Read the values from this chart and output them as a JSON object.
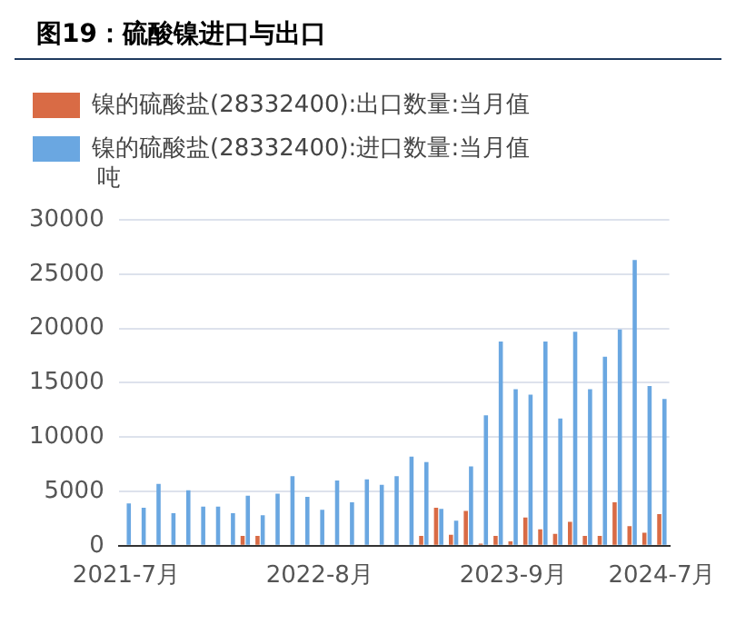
{
  "chart_data": {
    "type": "bar",
    "title": "图19：硫酸镍进口与出口",
    "ylabel": "吨",
    "categories": [
      "2021-7月",
      null,
      null,
      null,
      null,
      null,
      null,
      null,
      null,
      null,
      null,
      null,
      null,
      "2022-8月",
      null,
      null,
      null,
      null,
      null,
      null,
      null,
      null,
      null,
      null,
      null,
      null,
      "2023-9月",
      null,
      null,
      null,
      null,
      null,
      null,
      null,
      null,
      null,
      "2024-7月"
    ],
    "series": [
      {
        "name": "镍的硫酸盐(28332400):出口数量:当月值",
        "color": "#d96b45",
        "values": [
          null,
          null,
          null,
          null,
          null,
          null,
          null,
          null,
          900,
          900,
          null,
          null,
          null,
          null,
          null,
          null,
          null,
          null,
          null,
          null,
          900,
          3500,
          1000,
          3200,
          200,
          900,
          400,
          2600,
          1500,
          1100,
          2200,
          900,
          900,
          4000,
          1800,
          1200,
          2900
        ]
      },
      {
        "name": "镍的硫酸盐(28332400):进口数量:当月值",
        "color": "#6aa7e1",
        "values": [
          3900,
          3500,
          5700,
          3000,
          5100,
          3600,
          3600,
          3000,
          4600,
          2800,
          4800,
          6400,
          4500,
          3300,
          6000,
          4000,
          6100,
          5600,
          6400,
          8200,
          7700,
          3400,
          2300,
          7300,
          12000,
          18800,
          14400,
          13900,
          18800,
          11700,
          19700,
          14400,
          17400,
          19900,
          26300,
          14700,
          13500
        ]
      }
    ],
    "ylim": [
      0,
      30000
    ],
    "yticks": [
      0,
      {
        "value": 5000,
        "label": "5000"
      },
      {
        "value": 10000,
        "label": "10000"
      },
      {
        "value": 15000,
        "label": "15000"
      },
      {
        "value": 20000,
        "label": "20000"
      },
      {
        "value": 25000,
        "label": "25000"
      },
      {
        "value": 30000,
        "label": "30000"
      }
    ],
    "grid": "y",
    "legend": "top left"
  }
}
